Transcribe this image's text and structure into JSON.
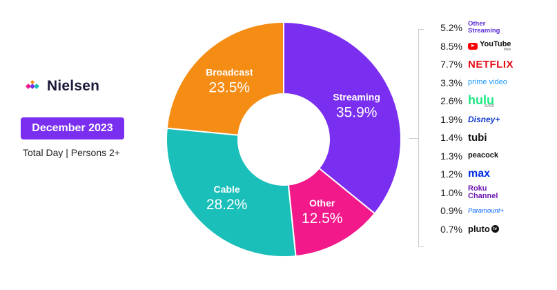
{
  "brand": {
    "name": "Nielsen",
    "logo_icon": "nielsen-diamond-logo"
  },
  "period": "December 2023",
  "subtitle": "Total Day | Persons 2+",
  "colors": {
    "streaming": "#7a2ff0",
    "broadcast": "#f58c14",
    "cable": "#1bbfb9",
    "other": "#f2198a",
    "pill": "#7a2ff0"
  },
  "chart_data": {
    "type": "pie",
    "donut": true,
    "segments": [
      {
        "name": "Streaming",
        "value": 35.9,
        "label": "35.9%"
      },
      {
        "name": "Other",
        "value": 12.5,
        "label": "12.5%"
      },
      {
        "name": "Cable",
        "value": 28.2,
        "label": "28.2%"
      },
      {
        "name": "Broadcast",
        "value": 23.5,
        "label": "23.5%"
      }
    ],
    "streaming_breakdown": [
      {
        "service": "Other Streaming",
        "value": 5.2,
        "label": "5.2%"
      },
      {
        "service": "YouTube Main",
        "value": 8.5,
        "label": "8.5%"
      },
      {
        "service": "NETFLIX",
        "value": 7.7,
        "label": "7.7%"
      },
      {
        "service": "prime video",
        "value": 3.3,
        "label": "3.3%"
      },
      {
        "service": "hulu SVOD",
        "value": 2.6,
        "label": "2.6%"
      },
      {
        "service": "Disney+",
        "value": 1.9,
        "label": "1.9%"
      },
      {
        "service": "tubi",
        "value": 1.4,
        "label": "1.4%"
      },
      {
        "service": "peacock",
        "value": 1.3,
        "label": "1.3%"
      },
      {
        "service": "max",
        "value": 1.2,
        "label": "1.2%"
      },
      {
        "service": "Roku Channel",
        "value": 1.0,
        "label": "1.0%"
      },
      {
        "service": "Paramount+",
        "value": 0.9,
        "label": "0.9%"
      },
      {
        "service": "pluto tv",
        "value": 0.7,
        "label": "0.7%"
      }
    ]
  },
  "logos": {
    "other_streaming_1": "Other",
    "other_streaming_2": "Streaming",
    "youtube": "YouTube",
    "youtube_sub": "Main",
    "netflix": "NETFLIX",
    "prime": "prime video",
    "hulu": "hulu",
    "hulu_sub": "SVOD",
    "disney": "Disney+",
    "tubi": "tubi",
    "peacock": "peacock",
    "max": "max",
    "roku_1": "Roku",
    "roku_2": "Channel",
    "paramount": "Paramount+",
    "pluto": "pluto",
    "pluto_badge": "tv"
  }
}
